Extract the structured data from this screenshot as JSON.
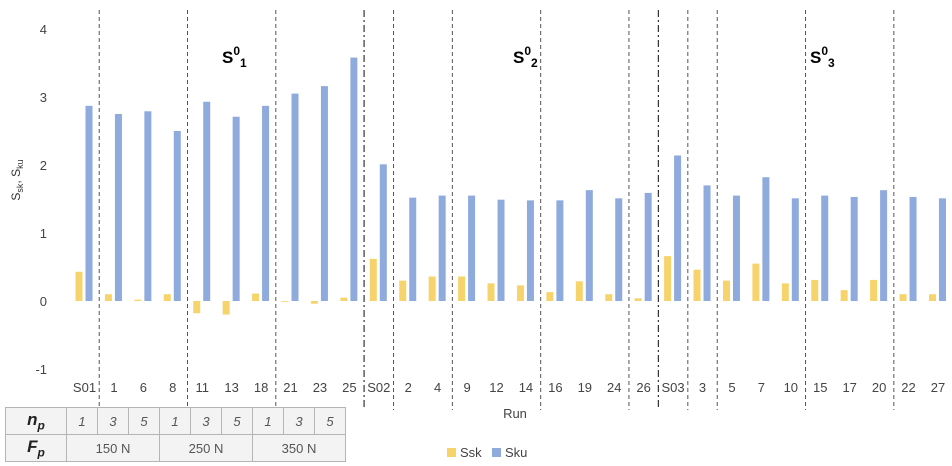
{
  "chart_data": {
    "type": "bar",
    "ylabel_main": "S",
    "ylabel_sub1": "sk",
    "ylabel_sep": ", S",
    "ylabel_sub2": "ku",
    "xlabel": "Run",
    "ylim": [
      -1,
      4
    ],
    "yticks": [
      "-1",
      "0",
      "1",
      "2",
      "3",
      "4"
    ],
    "categories": [
      "S01",
      "1",
      "6",
      "8",
      "11",
      "13",
      "18",
      "21",
      "23",
      "25",
      "S02",
      "2",
      "4",
      "9",
      "12",
      "14",
      "16",
      "19",
      "24",
      "26",
      "S03",
      "3",
      "5",
      "7",
      "10",
      "15",
      "17",
      "20",
      "22",
      "27"
    ],
    "series": [
      {
        "name": "Ssk",
        "color": "#f6d46b",
        "values": [
          0.43,
          0.1,
          0.02,
          0.1,
          -0.18,
          -0.2,
          0.11,
          0.0,
          -0.04,
          0.05,
          0.62,
          0.3,
          0.36,
          0.36,
          0.26,
          0.23,
          0.13,
          0.29,
          0.1,
          0.04,
          0.66,
          0.46,
          0.3,
          0.55,
          0.26,
          0.31,
          0.16,
          0.31,
          0.1,
          0.1
        ]
      },
      {
        "name": "Sku",
        "color": "#8faadc",
        "values": [
          2.87,
          2.75,
          2.79,
          2.5,
          2.93,
          2.71,
          2.87,
          3.05,
          3.16,
          3.58,
          2.01,
          1.52,
          1.55,
          1.55,
          1.49,
          1.48,
          1.48,
          1.63,
          1.51,
          1.59,
          2.14,
          1.7,
          1.55,
          1.82,
          1.51,
          1.55,
          1.53,
          1.63,
          1.53,
          1.51
        ]
      }
    ],
    "groups": [
      {
        "label_base": "S",
        "label_sup": "0",
        "label_sub": "1"
      },
      {
        "label_base": "S",
        "label_sup": "0",
        "label_sub": "2"
      },
      {
        "label_base": "S",
        "label_sup": "0",
        "label_sub": "3"
      }
    ],
    "grid": false,
    "legend_position": "bottom"
  },
  "param_table": {
    "np_header": "n",
    "np_sub": "p",
    "fp_header": "F",
    "fp_sub": "p",
    "np_values": [
      "1",
      "3",
      "5",
      "1",
      "3",
      "5",
      "1",
      "3",
      "5"
    ],
    "fp_values": [
      "150 N",
      "250 N",
      "350 N"
    ]
  }
}
